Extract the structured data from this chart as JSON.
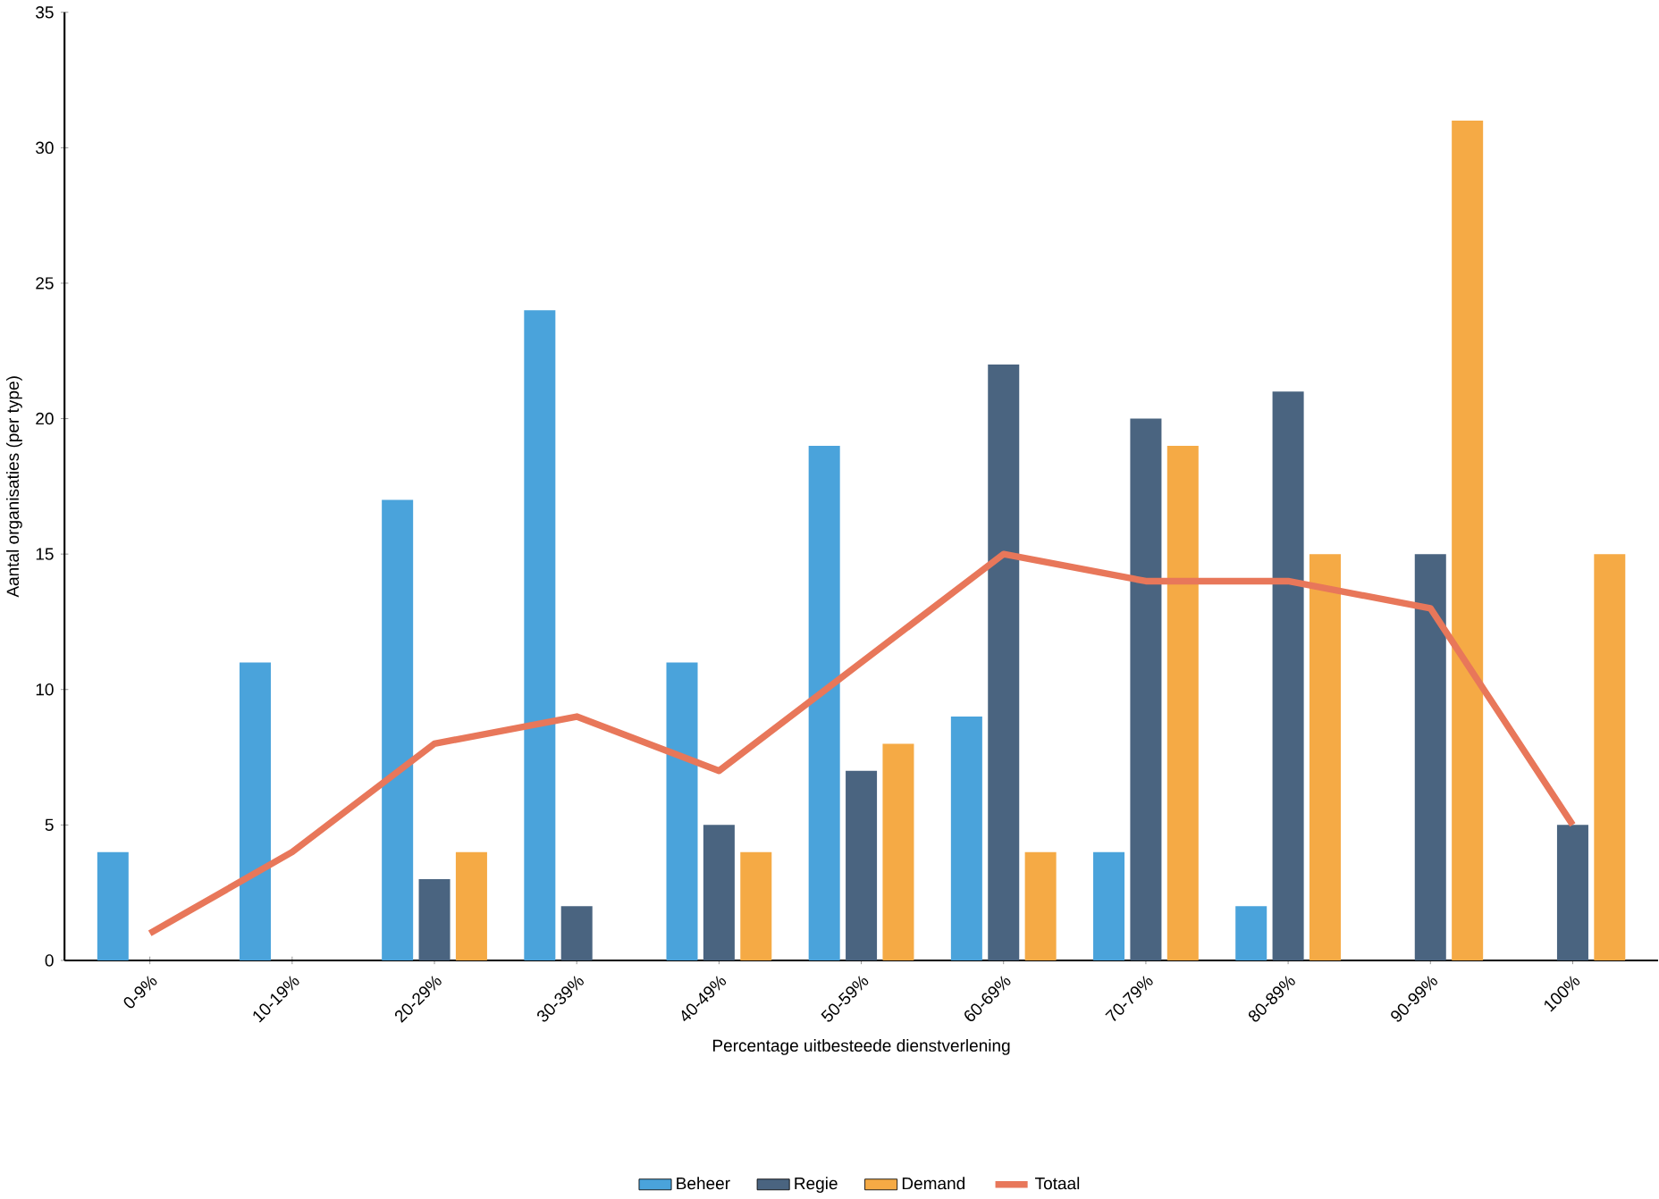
{
  "chart_data": {
    "type": "bar",
    "xlabel": "Percentage uitbesteede dienstverlening",
    "ylabel": "Aantal organisaties (per type)",
    "categories": [
      "0-9%",
      "10-19%",
      "20-29%",
      "30-39%",
      "40-49%",
      "50-59%",
      "60-69%",
      "70-79%",
      "80-89%",
      "90-99%",
      "100%"
    ],
    "series": [
      {
        "name": "Beheer",
        "color": "#4aa3db",
        "values": [
          4,
          11,
          17,
          24,
          11,
          19,
          9,
          4,
          2,
          0,
          0
        ]
      },
      {
        "name": "Regie",
        "color": "#4a6480",
        "values": [
          0,
          0,
          3,
          2,
          5,
          7,
          22,
          20,
          21,
          15,
          5
        ]
      },
      {
        "name": "Demand",
        "color": "#f5aa45",
        "values": [
          0,
          0,
          4,
          0,
          4,
          8,
          4,
          19,
          15,
          31,
          15
        ]
      },
      {
        "name": "Totaal",
        "type": "line",
        "color": "#e8775a",
        "values": [
          1,
          4,
          8,
          9,
          7,
          11,
          15,
          14,
          14,
          13,
          5
        ]
      }
    ],
    "ylim": [
      0,
      35
    ],
    "yticks": [
      0,
      5,
      10,
      15,
      20,
      25,
      30,
      35
    ],
    "grid": false,
    "legend": "bottom",
    "marker": "none",
    "line_style": "solid"
  }
}
